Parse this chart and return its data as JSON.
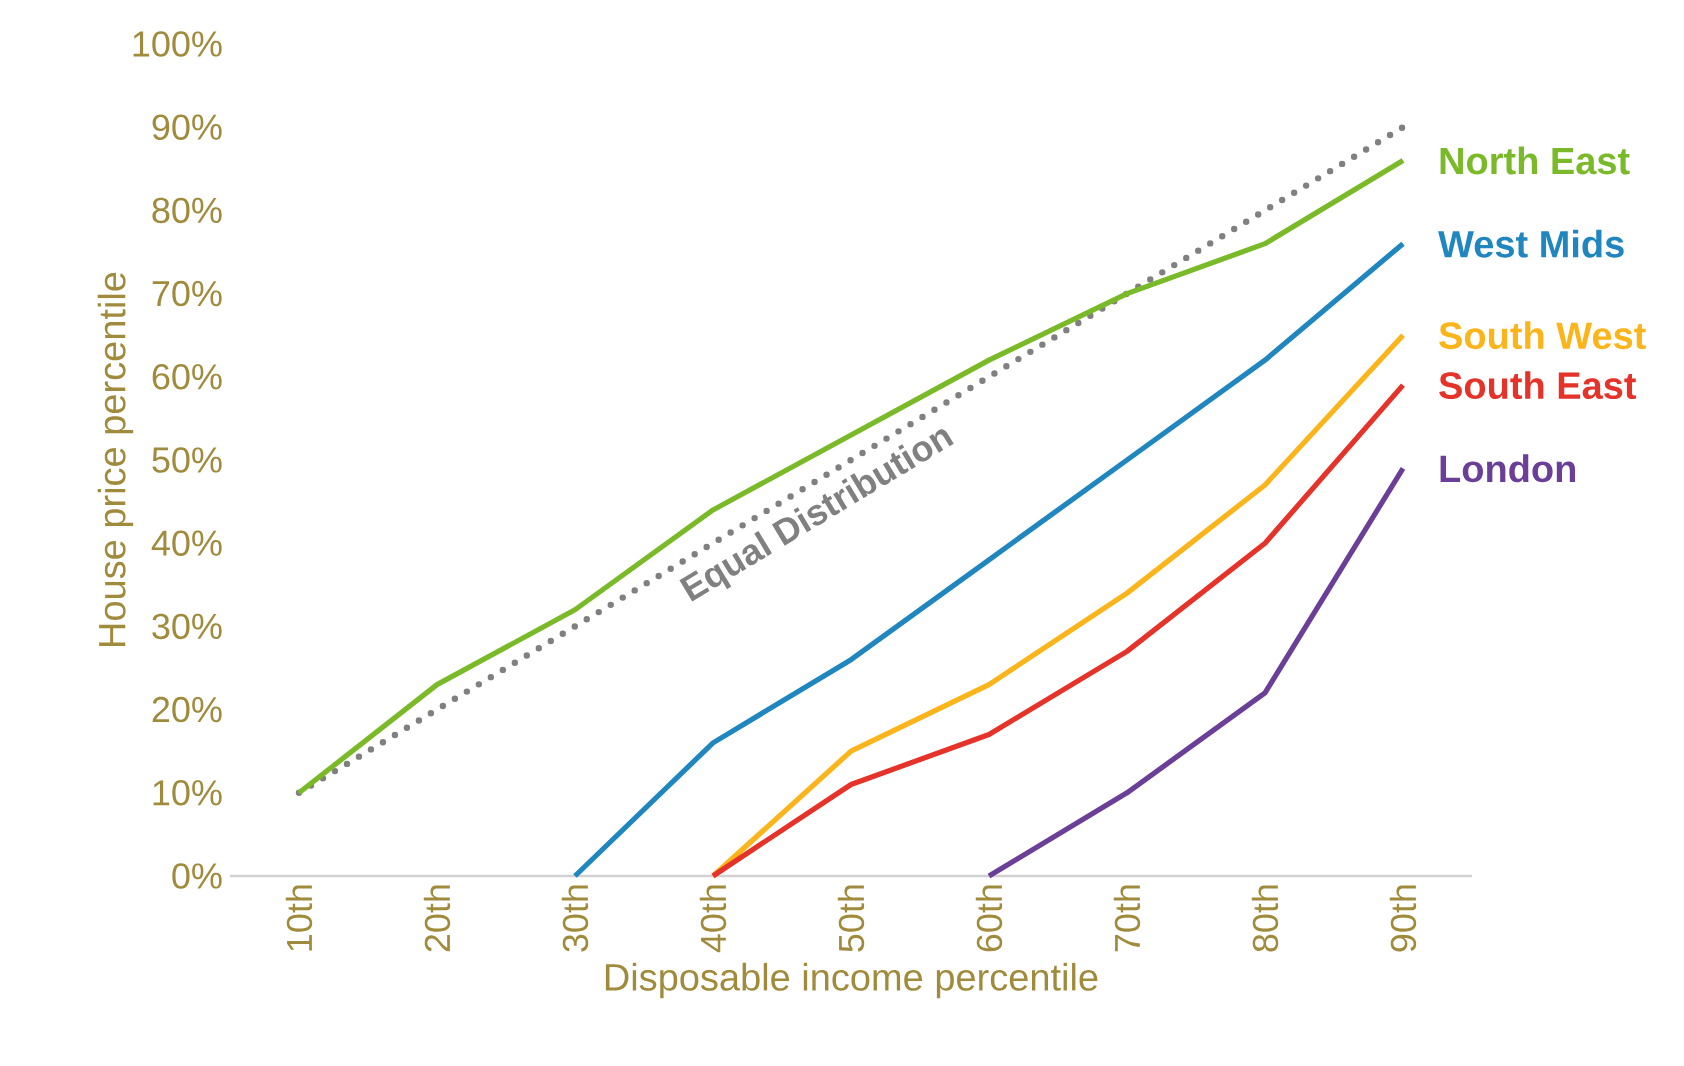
{
  "chart_data": {
    "type": "line",
    "xlabel": "Disposable income percentile",
    "ylabel": "House price percentile",
    "categories": [
      "10th",
      "20th",
      "30th",
      "40th",
      "50th",
      "60th",
      "70th",
      "80th",
      "90th"
    ],
    "ylim": [
      0,
      100
    ],
    "yticks": [
      {
        "value": 0,
        "label": "0%"
      },
      {
        "value": 10,
        "label": "10%"
      },
      {
        "value": 20,
        "label": "20%"
      },
      {
        "value": 30,
        "label": "30%"
      },
      {
        "value": 40,
        "label": "40%"
      },
      {
        "value": 50,
        "label": "50%"
      },
      {
        "value": 60,
        "label": "60%"
      },
      {
        "value": 70,
        "label": "70%"
      },
      {
        "value": 80,
        "label": "80%"
      },
      {
        "value": 90,
        "label": "90%"
      },
      {
        "value": 100,
        "label": "100%"
      }
    ],
    "grid": false,
    "series": [
      {
        "name": "Equal Distribution",
        "color": "#808080",
        "line_style": "dotted",
        "values": [
          10,
          20,
          30,
          40,
          50,
          60,
          70,
          80,
          90
        ]
      },
      {
        "name": "North East",
        "color": "#7aba28",
        "values": [
          10,
          23,
          32,
          44,
          53,
          62,
          70,
          76,
          86
        ]
      },
      {
        "name": "West Mids",
        "color": "#1f86bf",
        "values": [
          null,
          null,
          0,
          16,
          26,
          38,
          50,
          62,
          76
        ]
      },
      {
        "name": "South West",
        "color": "#fbb419",
        "values": [
          null,
          null,
          null,
          0,
          15,
          23,
          34,
          47,
          65
        ]
      },
      {
        "name": "South East",
        "color": "#e5332a",
        "values": [
          null,
          null,
          null,
          0,
          11,
          17,
          27,
          40,
          59
        ]
      },
      {
        "name": "London",
        "color": "#6b3e98",
        "values": [
          null,
          null,
          null,
          null,
          null,
          0,
          10,
          22,
          49
        ]
      }
    ]
  }
}
